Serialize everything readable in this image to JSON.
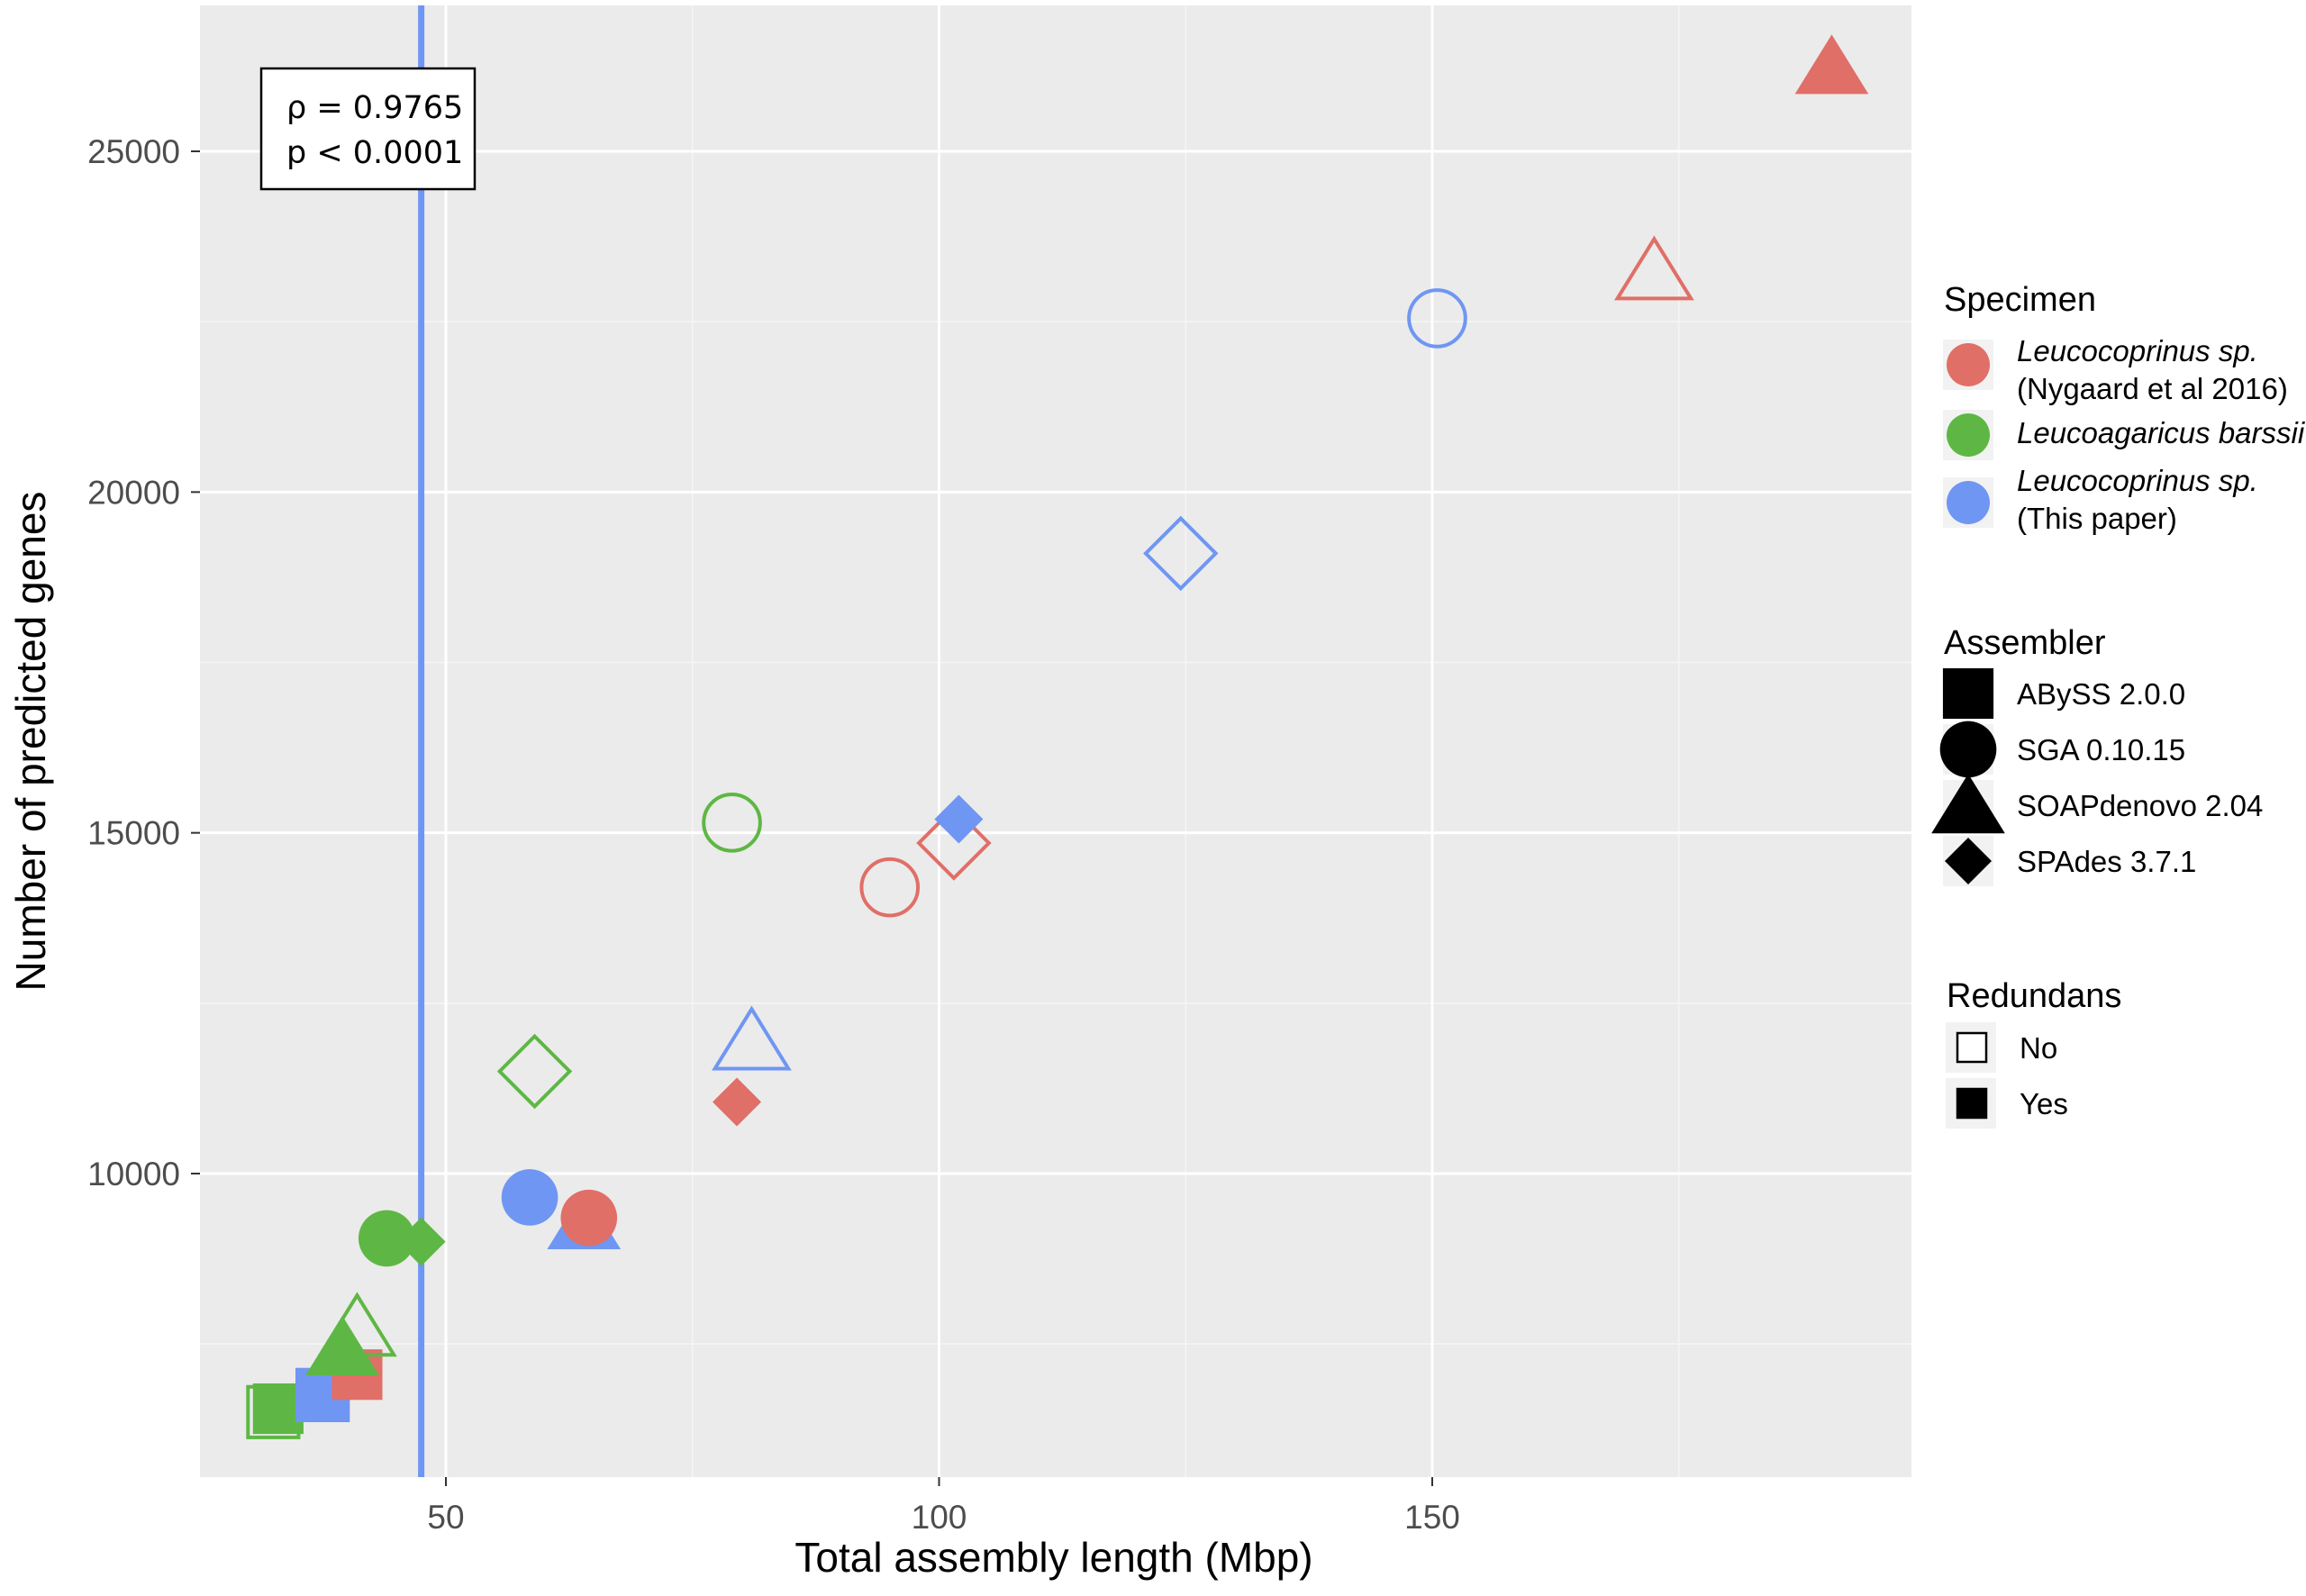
{
  "chart_data": {
    "type": "scatter",
    "title": "",
    "xlabel": "Total assembly length (Mbp)",
    "ylabel": "Number of predicted genes",
    "xlim": [
      25,
      200
    ],
    "ylim": [
      6000,
      27000
    ],
    "xticks": [
      50,
      100,
      150
    ],
    "yticks": [
      10000,
      15000,
      20000,
      25000
    ],
    "grid": true,
    "vline": {
      "x": 47.5,
      "color": "#6f96f2"
    },
    "annotation": {
      "lines": [
        "ρ = 0.9765",
        "p < 0.0001"
      ],
      "position": "top-left"
    },
    "colors": {
      "nygaard": "#e06f67",
      "barssii": "#5eb744",
      "thispaper": "#6f96f2"
    },
    "points": [
      {
        "x": 32.5,
        "y": 6500,
        "specimen": "barssii",
        "assembler": "abyss",
        "redundans": "no"
      },
      {
        "x": 33.0,
        "y": 6550,
        "specimen": "barssii",
        "assembler": "abyss",
        "redundans": "yes"
      },
      {
        "x": 37.5,
        "y": 6750,
        "specimen": "nygaard",
        "assembler": "abyss",
        "redundans": "no"
      },
      {
        "x": 37.5,
        "y": 6750,
        "specimen": "thispaper",
        "assembler": "abyss",
        "redundans": "no"
      },
      {
        "x": 37.5,
        "y": 6750,
        "specimen": "thispaper",
        "assembler": "abyss",
        "redundans": "yes"
      },
      {
        "x": 41.0,
        "y": 7050,
        "specimen": "nygaard",
        "assembler": "abyss",
        "redundans": "yes"
      },
      {
        "x": 39.5,
        "y": 7400,
        "specimen": "barssii",
        "assembler": "soap",
        "redundans": "yes"
      },
      {
        "x": 41.0,
        "y": 7700,
        "specimen": "barssii",
        "assembler": "soap",
        "redundans": "no"
      },
      {
        "x": 44.0,
        "y": 9050,
        "specimen": "barssii",
        "assembler": "sga",
        "redundans": "yes"
      },
      {
        "x": 47.5,
        "y": 9000,
        "specimen": "barssii",
        "assembler": "spades",
        "redundans": "yes"
      },
      {
        "x": 58.5,
        "y": 9650,
        "specimen": "thispaper",
        "assembler": "sga",
        "redundans": "yes"
      },
      {
        "x": 64.0,
        "y": 9250,
        "specimen": "thispaper",
        "assembler": "soap",
        "redundans": "yes"
      },
      {
        "x": 64.5,
        "y": 9350,
        "specimen": "nygaard",
        "assembler": "sga",
        "redundans": "yes"
      },
      {
        "x": 59.0,
        "y": 11500,
        "specimen": "barssii",
        "assembler": "spades",
        "redundans": "no"
      },
      {
        "x": 79.5,
        "y": 11050,
        "specimen": "nygaard",
        "assembler": "spades",
        "redundans": "yes"
      },
      {
        "x": 81.0,
        "y": 11900,
        "specimen": "thispaper",
        "assembler": "soap",
        "redundans": "no"
      },
      {
        "x": 79.0,
        "y": 15150,
        "specimen": "barssii",
        "assembler": "sga",
        "redundans": "no"
      },
      {
        "x": 95.0,
        "y": 14200,
        "specimen": "nygaard",
        "assembler": "sga",
        "redundans": "no"
      },
      {
        "x": 101.5,
        "y": 14850,
        "specimen": "nygaard",
        "assembler": "spades",
        "redundans": "no"
      },
      {
        "x": 102.0,
        "y": 15200,
        "specimen": "thispaper",
        "assembler": "spades",
        "redundans": "yes"
      },
      {
        "x": 124.5,
        "y": 19100,
        "specimen": "thispaper",
        "assembler": "spades",
        "redundans": "no"
      },
      {
        "x": 150.5,
        "y": 22550,
        "specimen": "thispaper",
        "assembler": "sga",
        "redundans": "no"
      },
      {
        "x": 172.5,
        "y": 23200,
        "specimen": "nygaard",
        "assembler": "soap",
        "redundans": "no"
      },
      {
        "x": 190.5,
        "y": 26200,
        "specimen": "nygaard",
        "assembler": "soap",
        "redundans": "yes"
      }
    ],
    "legend": {
      "placement": "right",
      "specimen": {
        "title": "Specimen",
        "items": [
          {
            "key": "nygaard",
            "line1": "Leucocoprinus sp.",
            "line2": "(Nygaard et al 2016)"
          },
          {
            "key": "barssii",
            "line1": "Leucoagaricus barssii",
            "line2": ""
          },
          {
            "key": "thispaper",
            "line1": "Leucocoprinus sp.",
            "line2": "(This paper)"
          }
        ]
      },
      "assembler": {
        "title": "Assembler",
        "items": [
          {
            "key": "abyss",
            "label": "ABySS 2.0.0"
          },
          {
            "key": "sga",
            "label": "SGA 0.10.15"
          },
          {
            "key": "soap",
            "label": "SOAPdenovo 2.04"
          },
          {
            "key": "spades",
            "label": "SPAdes 3.7.1"
          }
        ]
      },
      "redundans": {
        "title": "Redundans",
        "items": [
          {
            "key": "no",
            "label": "No"
          },
          {
            "key": "yes",
            "label": "Yes"
          }
        ]
      }
    }
  }
}
